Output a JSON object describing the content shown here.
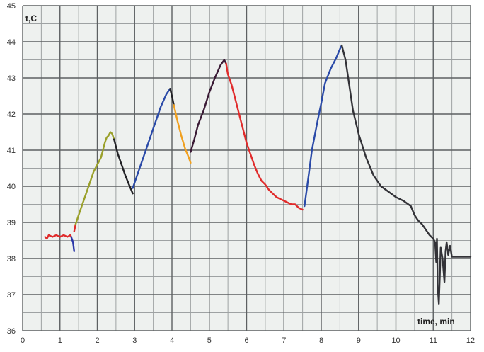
{
  "chart_data": {
    "type": "line",
    "title": "",
    "xlabel": "time, min",
    "ylabel": "t,C",
    "xlim": [
      0,
      12
    ],
    "ylim": [
      36,
      45
    ],
    "x_ticks": [
      0,
      1,
      2,
      3,
      4,
      5,
      6,
      7,
      8,
      9,
      10,
      11,
      12
    ],
    "y_ticks": [
      36,
      37,
      38,
      39,
      40,
      41,
      42,
      43,
      44,
      45
    ],
    "grid": true,
    "grid_color": "#5d6062",
    "background": "#eef1ef",
    "series": [
      {
        "color": "#e02b2b",
        "points": [
          [
            0.6,
            38.6
          ],
          [
            0.65,
            38.55
          ],
          [
            0.7,
            38.65
          ],
          [
            0.8,
            38.6
          ],
          [
            0.9,
            38.65
          ],
          [
            1.0,
            38.6
          ],
          [
            1.1,
            38.65
          ],
          [
            1.2,
            38.6
          ],
          [
            1.28,
            38.65
          ],
          [
            1.3,
            38.6
          ]
        ]
      },
      {
        "color": "#2a36a8",
        "points": [
          [
            1.3,
            38.6
          ],
          [
            1.35,
            38.45
          ],
          [
            1.38,
            38.2
          ]
        ]
      },
      {
        "color": "#e02b2b",
        "points": [
          [
            1.38,
            38.75
          ],
          [
            1.42,
            38.95
          ]
        ]
      },
      {
        "color": "#9aa02a",
        "points": [
          [
            1.42,
            38.95
          ],
          [
            1.5,
            39.2
          ],
          [
            1.6,
            39.5
          ],
          [
            1.7,
            39.8
          ],
          [
            1.8,
            40.1
          ],
          [
            1.9,
            40.4
          ],
          [
            2.0,
            40.6
          ],
          [
            2.1,
            40.8
          ],
          [
            2.2,
            41.2
          ],
          [
            2.25,
            41.35
          ],
          [
            2.3,
            41.4
          ],
          [
            2.35,
            41.5
          ],
          [
            2.4,
            41.45
          ],
          [
            2.45,
            41.3
          ]
        ]
      },
      {
        "color": "#222226",
        "points": [
          [
            2.45,
            41.3
          ],
          [
            2.55,
            40.9
          ],
          [
            2.65,
            40.6
          ],
          [
            2.75,
            40.3
          ],
          [
            2.85,
            40.05
          ],
          [
            2.95,
            39.8
          ]
        ]
      },
      {
        "color": "#2a4aa8",
        "points": [
          [
            2.95,
            39.95
          ],
          [
            3.1,
            40.4
          ],
          [
            3.3,
            41.0
          ],
          [
            3.5,
            41.6
          ],
          [
            3.7,
            42.2
          ],
          [
            3.85,
            42.55
          ],
          [
            3.95,
            42.7
          ]
        ]
      },
      {
        "color": "#222226",
        "points": [
          [
            3.95,
            42.7
          ],
          [
            4.0,
            42.5
          ],
          [
            4.05,
            42.25
          ]
        ]
      },
      {
        "color": "#f0a020",
        "points": [
          [
            4.05,
            42.25
          ],
          [
            4.15,
            41.8
          ],
          [
            4.25,
            41.4
          ],
          [
            4.35,
            41.05
          ],
          [
            4.45,
            40.8
          ],
          [
            4.5,
            40.65
          ]
        ]
      },
      {
        "color": "#3a1a35",
        "points": [
          [
            4.5,
            40.95
          ],
          [
            4.6,
            41.3
          ],
          [
            4.7,
            41.7
          ],
          [
            4.85,
            42.1
          ],
          [
            5.0,
            42.6
          ],
          [
            5.15,
            43.0
          ],
          [
            5.3,
            43.35
          ],
          [
            5.4,
            43.5
          ],
          [
            5.45,
            43.4
          ]
        ]
      },
      {
        "color": "#e02b2b",
        "points": [
          [
            5.45,
            43.4
          ],
          [
            5.5,
            43.1
          ],
          [
            5.6,
            42.8
          ],
          [
            5.7,
            42.4
          ],
          [
            5.8,
            42.0
          ],
          [
            5.9,
            41.6
          ],
          [
            6.0,
            41.2
          ],
          [
            6.1,
            40.9
          ],
          [
            6.2,
            40.6
          ],
          [
            6.3,
            40.35
          ],
          [
            6.4,
            40.15
          ],
          [
            6.5,
            40.05
          ],
          [
            6.6,
            39.9
          ],
          [
            6.7,
            39.8
          ],
          [
            6.8,
            39.7
          ],
          [
            6.9,
            39.65
          ],
          [
            7.0,
            39.6
          ],
          [
            7.1,
            39.55
          ],
          [
            7.2,
            39.5
          ],
          [
            7.3,
            39.5
          ],
          [
            7.4,
            39.4
          ],
          [
            7.5,
            39.35
          ]
        ]
      },
      {
        "color": "#2a4aa8",
        "points": [
          [
            7.55,
            39.45
          ],
          [
            7.65,
            40.2
          ],
          [
            7.75,
            41.0
          ],
          [
            7.9,
            41.8
          ],
          [
            8.0,
            42.3
          ],
          [
            8.1,
            42.85
          ],
          [
            8.25,
            43.25
          ],
          [
            8.4,
            43.55
          ],
          [
            8.5,
            43.8
          ],
          [
            8.55,
            43.9
          ]
        ]
      },
      {
        "color": "#333338",
        "points": [
          [
            8.55,
            43.9
          ],
          [
            8.65,
            43.5
          ],
          [
            8.75,
            42.8
          ],
          [
            8.85,
            42.1
          ],
          [
            9.0,
            41.45
          ],
          [
            9.2,
            40.8
          ],
          [
            9.4,
            40.3
          ],
          [
            9.6,
            40.0
          ],
          [
            9.8,
            39.85
          ],
          [
            10.0,
            39.7
          ],
          [
            10.2,
            39.6
          ],
          [
            10.4,
            39.45
          ],
          [
            10.5,
            39.2
          ],
          [
            10.6,
            39.05
          ],
          [
            10.7,
            38.95
          ],
          [
            10.8,
            38.8
          ],
          [
            10.9,
            38.65
          ],
          [
            11.0,
            38.55
          ],
          [
            11.05,
            38.45
          ],
          [
            11.08,
            37.9
          ],
          [
            11.1,
            38.55
          ],
          [
            11.12,
            37.2
          ],
          [
            11.15,
            36.75
          ],
          [
            11.18,
            37.6
          ],
          [
            11.2,
            38.3
          ],
          [
            11.25,
            38.0
          ],
          [
            11.3,
            37.35
          ],
          [
            11.33,
            38.2
          ],
          [
            11.36,
            38.45
          ],
          [
            11.4,
            38.1
          ],
          [
            11.45,
            38.35
          ],
          [
            11.5,
            38.05
          ],
          [
            11.7,
            38.05
          ],
          [
            12.0,
            38.05
          ]
        ]
      }
    ]
  }
}
